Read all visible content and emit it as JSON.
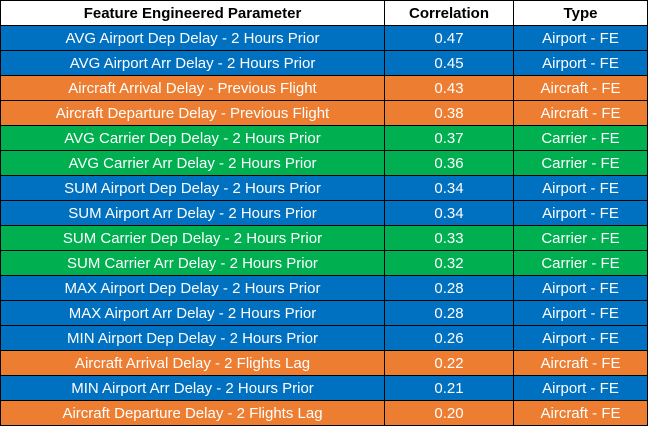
{
  "colors": {
    "airport": "#0070C0",
    "aircraft": "#ED7D31",
    "carrier": "#00B050"
  },
  "table": {
    "headers": [
      "Feature Engineered Parameter",
      "Correlation",
      "Type"
    ],
    "rows": [
      {
        "parameter": "AVG Airport Dep Delay - 2 Hours Prior",
        "correlation": "0.47",
        "type": "Airport - FE",
        "group": "airport"
      },
      {
        "parameter": "AVG Airport Arr Delay - 2 Hours Prior",
        "correlation": "0.45",
        "type": "Airport - FE",
        "group": "airport"
      },
      {
        "parameter": "Aircraft Arrival Delay - Previous Flight",
        "correlation": "0.43",
        "type": "Aircraft - FE",
        "group": "aircraft"
      },
      {
        "parameter": "Aircraft Departure Delay - Previous Flight",
        "correlation": "0.38",
        "type": "Aircraft - FE",
        "group": "aircraft"
      },
      {
        "parameter": "AVG Carrier Dep Delay - 2 Hours Prior",
        "correlation": "0.37",
        "type": "Carrier - FE",
        "group": "carrier"
      },
      {
        "parameter": "AVG Carrier Arr Delay - 2 Hours Prior",
        "correlation": "0.36",
        "type": "Carrier - FE",
        "group": "carrier"
      },
      {
        "parameter": "SUM Airport Dep Delay - 2 Hours Prior",
        "correlation": "0.34",
        "type": "Airport - FE",
        "group": "airport"
      },
      {
        "parameter": "SUM Airport Arr Delay - 2 Hours Prior",
        "correlation": "0.34",
        "type": "Airport - FE",
        "group": "airport"
      },
      {
        "parameter": "SUM Carrier Dep Delay - 2 Hours Prior",
        "correlation": "0.33",
        "type": "Carrier - FE",
        "group": "carrier"
      },
      {
        "parameter": "SUM Carrier Arr Delay - 2 Hours Prior",
        "correlation": "0.32",
        "type": "Carrier - FE",
        "group": "carrier"
      },
      {
        "parameter": "MAX Airport Dep Delay - 2 Hours Prior",
        "correlation": "0.28",
        "type": "Airport - FE",
        "group": "airport"
      },
      {
        "parameter": "MAX Airport Arr Delay - 2 Hours Prior",
        "correlation": "0.28",
        "type": "Airport - FE",
        "group": "airport"
      },
      {
        "parameter": "MIN Airport Dep Delay - 2 Hours Prior",
        "correlation": "0.26",
        "type": "Airport - FE",
        "group": "airport"
      },
      {
        "parameter": "Aircraft Arrival Delay - 2 Flights Lag",
        "correlation": "0.22",
        "type": "Aircraft - FE",
        "group": "aircraft"
      },
      {
        "parameter": "MIN Airport Arr Delay - 2 Hours Prior",
        "correlation": "0.21",
        "type": "Airport - FE",
        "group": "airport"
      },
      {
        "parameter": "Aircraft Departure Delay - 2 Flights Lag",
        "correlation": "0.20",
        "type": "Aircraft - FE",
        "group": "aircraft"
      }
    ]
  }
}
